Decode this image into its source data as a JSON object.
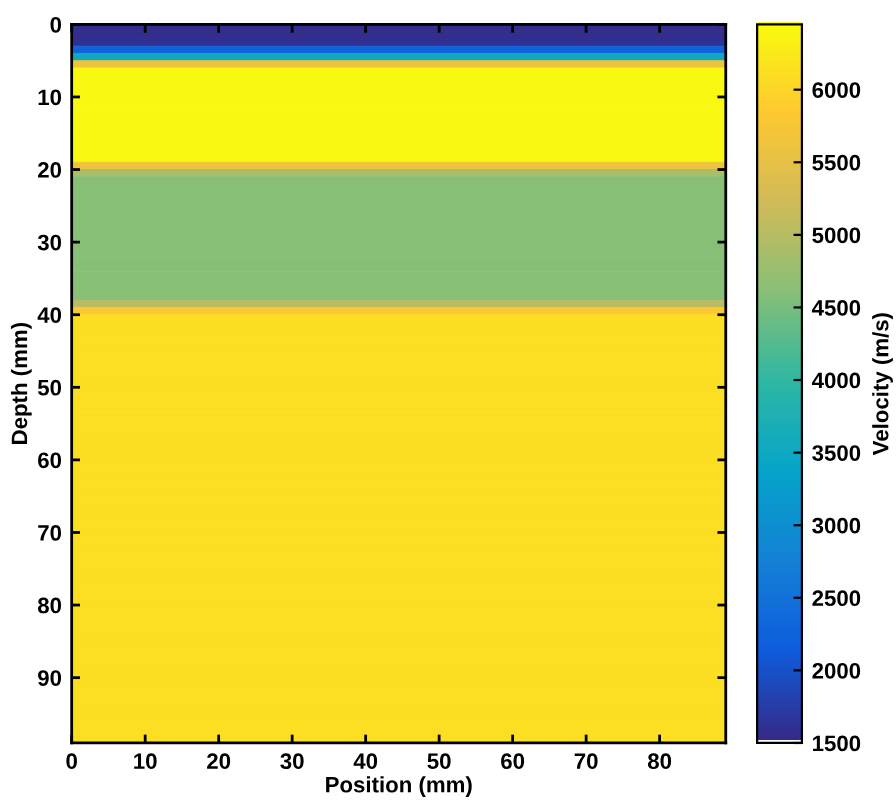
{
  "chart_data": {
    "type": "heatmap",
    "xlabel": "Position (mm)",
    "ylabel": "Depth (mm)",
    "clabel": "Velocity (m/s)",
    "cells": [
      [
        1550
      ],
      [
        1550
      ],
      [
        1600
      ],
      [
        2200
      ],
      [
        3500
      ],
      [
        5600
      ],
      [
        6400
      ],
      [
        6400
      ],
      [
        6400
      ],
      [
        6400
      ],
      [
        6400
      ],
      [
        6400
      ],
      [
        6400
      ],
      [
        6400
      ],
      [
        6400
      ],
      [
        6400
      ],
      [
        6400
      ],
      [
        6400
      ],
      [
        6400
      ],
      [
        5600
      ],
      [
        4900
      ],
      [
        4600
      ],
      [
        4600
      ],
      [
        4600
      ],
      [
        4600
      ],
      [
        4600
      ],
      [
        4600
      ],
      [
        4600
      ],
      [
        4600
      ],
      [
        4600
      ],
      [
        4600
      ],
      [
        4600
      ],
      [
        4600
      ],
      [
        4600
      ],
      [
        4600
      ],
      [
        4600
      ],
      [
        4600
      ],
      [
        4600
      ],
      [
        5000
      ],
      [
        5800
      ],
      [
        6100
      ],
      [
        6100
      ],
      [
        6100
      ],
      [
        6100
      ],
      [
        6100
      ],
      [
        6100
      ],
      [
        6100
      ],
      [
        6100
      ],
      [
        6100
      ],
      [
        6100
      ],
      [
        6100
      ],
      [
        6100
      ],
      [
        6100
      ],
      [
        6100
      ],
      [
        6100
      ],
      [
        6100
      ],
      [
        6100
      ],
      [
        6100
      ],
      [
        6100
      ],
      [
        6100
      ],
      [
        6100
      ],
      [
        6100
      ],
      [
        6100
      ],
      [
        6100
      ],
      [
        6100
      ],
      [
        6100
      ],
      [
        6100
      ],
      [
        6100
      ],
      [
        6100
      ],
      [
        6100
      ],
      [
        6100
      ],
      [
        6100
      ],
      [
        6100
      ],
      [
        6100
      ],
      [
        6100
      ],
      [
        6100
      ],
      [
        6100
      ],
      [
        6100
      ],
      [
        6100
      ],
      [
        6100
      ],
      [
        6100
      ],
      [
        6100
      ],
      [
        6100
      ],
      [
        6100
      ],
      [
        6100
      ],
      [
        6100
      ],
      [
        6100
      ],
      [
        6100
      ],
      [
        6100
      ],
      [
        6100
      ],
      [
        6100
      ],
      [
        6100
      ],
      [
        6100
      ],
      [
        6100
      ],
      [
        6100
      ],
      [
        6100
      ],
      [
        6100
      ],
      [
        6100
      ],
      [
        6100
      ]
    ],
    "xlim": [
      0,
      89
    ],
    "xticks": [
      0,
      10,
      20,
      30,
      40,
      50,
      60,
      70,
      80
    ],
    "ylim": [
      99,
      0
    ],
    "yticks": [
      0,
      10,
      20,
      30,
      40,
      50,
      60,
      70,
      80,
      90
    ],
    "clim": [
      1500,
      6450
    ],
    "cticks": [
      1500,
      2000,
      2500,
      3000,
      3500,
      4000,
      4500,
      5000,
      5500,
      6000
    ]
  }
}
